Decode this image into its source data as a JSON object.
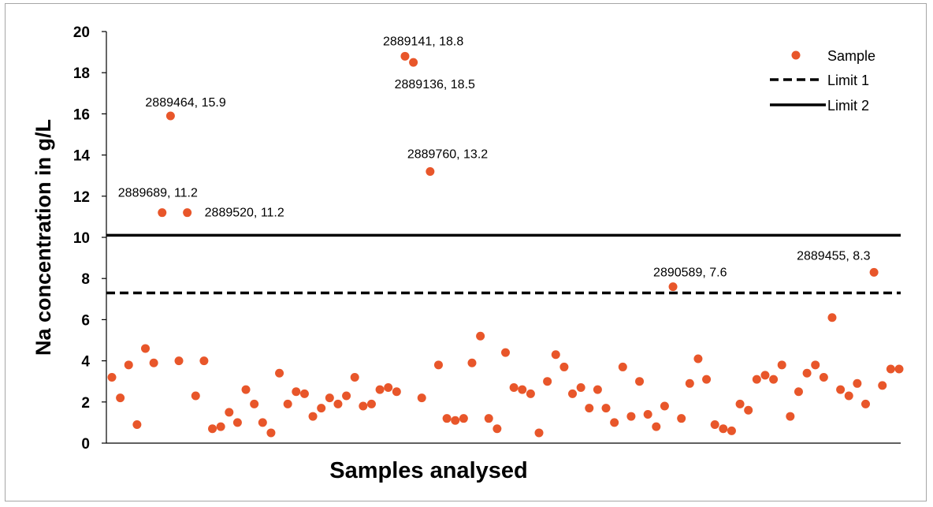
{
  "chart_data": {
    "type": "scatter",
    "title": "",
    "xlabel": "Samples analysed",
    "ylabel": "Na concentration in g/L",
    "ylim": [
      0,
      20
    ],
    "yticks": [
      "0",
      "2",
      "4",
      "6",
      "8",
      "10",
      "12",
      "14",
      "16",
      "18",
      "20"
    ],
    "grid": false,
    "legend_position": "top-right",
    "colors": {
      "sample": "#e8562a",
      "limit": "#000000"
    },
    "series": [
      {
        "name": "Sample",
        "style": "marker",
        "values": [
          3.2,
          2.2,
          3.8,
          0.9,
          4.6,
          3.9,
          11.2,
          15.9,
          4.0,
          11.2,
          2.3,
          4.0,
          0.7,
          0.8,
          1.5,
          1.0,
          2.6,
          1.9,
          1.0,
          0.5,
          3.4,
          1.9,
          2.5,
          2.4,
          1.3,
          1.7,
          2.2,
          1.9,
          2.3,
          3.2,
          1.8,
          1.9,
          2.6,
          2.7,
          2.5,
          18.8,
          18.5,
          2.2,
          13.2,
          3.8,
          1.2,
          1.1,
          1.2,
          3.9,
          5.2,
          1.2,
          0.7,
          4.4,
          2.7,
          2.6,
          2.4,
          0.5,
          3.0,
          4.3,
          3.7,
          2.4,
          2.7,
          1.7,
          2.6,
          1.7,
          1.0,
          3.7,
          1.3,
          3.0,
          1.4,
          0.8,
          1.8,
          7.6,
          1.2,
          2.9,
          4.1,
          3.1,
          0.9,
          0.7,
          0.6,
          1.9,
          1.6,
          3.1,
          3.3,
          3.1,
          3.8,
          1.3,
          2.5,
          3.4,
          3.8,
          3.2,
          6.1,
          2.6,
          2.3,
          2.9,
          1.9,
          8.3,
          2.8,
          3.6,
          3.6
        ]
      },
      {
        "name": "Limit 1",
        "style": "dashed",
        "value": 7.3
      },
      {
        "name": "Limit 2",
        "style": "solid",
        "value": 10.1
      }
    ],
    "annotations": [
      {
        "text": "2889464, 15.9",
        "point_index": 7
      },
      {
        "text": "2889689, 11.2",
        "point_index": 6
      },
      {
        "text": "2889520, 11.2",
        "point_index": 9
      },
      {
        "text": "2889141, 18.8",
        "point_index": 35
      },
      {
        "text": "2889136, 18.5",
        "point_index": 36
      },
      {
        "text": "2889760, 13.2",
        "point_index": 38
      },
      {
        "text": "2890589, 7.6",
        "point_index": 67
      },
      {
        "text": "2889455, 8.3",
        "point_index": 91
      }
    ]
  }
}
